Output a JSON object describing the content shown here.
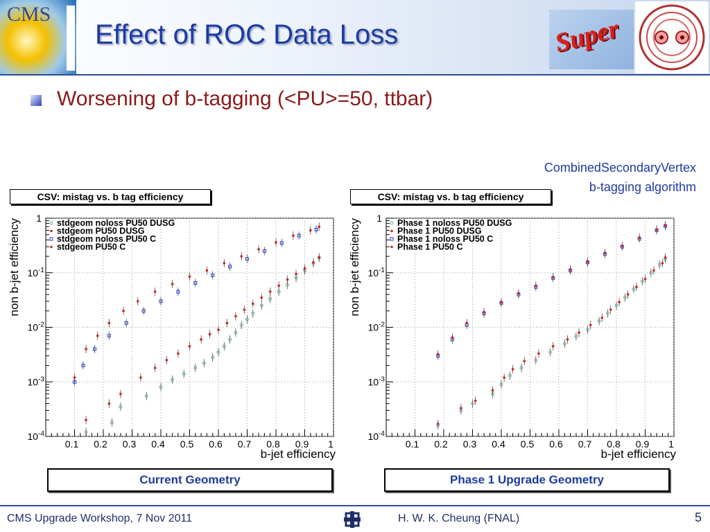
{
  "header": {
    "title": "Effect of ROC Data Loss",
    "cms_logo_text": "CMS",
    "super_logo_text": "Super"
  },
  "bullet": {
    "text": "Worsening of b-tagging (<PU>=50, ttbar)"
  },
  "algorithm": {
    "line1": "CombinedSecondaryVertex",
    "line2": "b-tagging algorithm"
  },
  "panels": [
    {
      "box_title": "CSV: mistag vs. b tag efficiency",
      "caption": "Current Geometry"
    },
    {
      "box_title": "CSV: mistag vs. b tag efficiency",
      "caption": "Phase 1 Upgrade Geometry"
    }
  ],
  "footer": {
    "left": "CMS Upgrade Workshop, 7 Nov 2011",
    "center": "H. W. K. Cheung (FNAL)",
    "page": "5"
  },
  "colors": {
    "title": "#1d3ba0",
    "bullet_text": "#8b1a1a",
    "series_red": "#d42020",
    "series_blue": "#2a3ad0",
    "series_green": "#6aa890"
  },
  "chart_data": [
    {
      "type": "scatter",
      "xlabel": "b-jet efficiency",
      "ylabel": "non b-jet efficiency",
      "xlim": [
        0,
        1
      ],
      "ylim": [
        0.0001,
        1
      ],
      "yscale": "log",
      "x_ticks": [
        "0.1",
        "0.2",
        "0.3",
        "0.4",
        "0.5",
        "0.6",
        "0.7",
        "0.8",
        "0.9",
        "1"
      ],
      "y_ticks": [
        {
          "base": "10",
          "exp": "-4",
          "v": 0.0001
        },
        {
          "base": "10",
          "exp": "-3",
          "v": 0.001
        },
        {
          "base": "10",
          "exp": "-2",
          "v": 0.01
        },
        {
          "base": "10",
          "exp": "-1",
          "v": 0.1
        },
        {
          "base": "1",
          "exp": "",
          "v": 1
        }
      ],
      "legend_position": "top-left",
      "series": [
        {
          "name": "stdgeom noloss PU50 DUSG",
          "marker": "circle",
          "color": "#6aa890",
          "points": [
            [
              0.14,
              0.00012
            ],
            [
              0.23,
              0.00018
            ],
            [
              0.26,
              0.00035
            ],
            [
              0.35,
              0.00055
            ],
            [
              0.4,
              0.0008
            ],
            [
              0.44,
              0.0011
            ],
            [
              0.48,
              0.0014
            ],
            [
              0.52,
              0.0018
            ],
            [
              0.55,
              0.0022
            ],
            [
              0.58,
              0.0028
            ],
            [
              0.6,
              0.0035
            ],
            [
              0.62,
              0.0045
            ],
            [
              0.64,
              0.006
            ],
            [
              0.66,
              0.008
            ],
            [
              0.68,
              0.011
            ],
            [
              0.7,
              0.014
            ],
            [
              0.72,
              0.018
            ],
            [
              0.75,
              0.025
            ],
            [
              0.78,
              0.033
            ],
            [
              0.81,
              0.045
            ],
            [
              0.84,
              0.06
            ],
            [
              0.87,
              0.08
            ],
            [
              0.9,
              0.11
            ],
            [
              0.93,
              0.15
            ],
            [
              0.95,
              0.19
            ]
          ]
        },
        {
          "name": "stdgeom PU50 DUSG",
          "marker": "dot",
          "color": "#d42020",
          "points": [
            [
              0.14,
              0.0002
            ],
            [
              0.22,
              0.0004
            ],
            [
              0.26,
              0.0006
            ],
            [
              0.33,
              0.0012
            ],
            [
              0.38,
              0.0018
            ],
            [
              0.42,
              0.0025
            ],
            [
              0.46,
              0.0033
            ],
            [
              0.5,
              0.0045
            ],
            [
              0.54,
              0.006
            ],
            [
              0.57,
              0.0075
            ],
            [
              0.6,
              0.009
            ],
            [
              0.63,
              0.012
            ],
            [
              0.66,
              0.016
            ],
            [
              0.69,
              0.021
            ],
            [
              0.72,
              0.027
            ],
            [
              0.75,
              0.035
            ],
            [
              0.78,
              0.045
            ],
            [
              0.81,
              0.058
            ],
            [
              0.84,
              0.075
            ],
            [
              0.87,
              0.095
            ],
            [
              0.9,
              0.12
            ],
            [
              0.93,
              0.155
            ],
            [
              0.95,
              0.19
            ]
          ]
        },
        {
          "name": "stdgeom noloss PU50 C",
          "marker": "square",
          "color": "#2a3ad0",
          "points": [
            [
              0.1,
              0.001
            ],
            [
              0.13,
              0.002
            ],
            [
              0.17,
              0.004
            ],
            [
              0.22,
              0.007
            ],
            [
              0.28,
              0.012
            ],
            [
              0.34,
              0.02
            ],
            [
              0.4,
              0.03
            ],
            [
              0.46,
              0.045
            ],
            [
              0.52,
              0.065
            ],
            [
              0.58,
              0.09
            ],
            [
              0.64,
              0.13
            ],
            [
              0.7,
              0.18
            ],
            [
              0.76,
              0.25
            ],
            [
              0.82,
              0.35
            ],
            [
              0.88,
              0.48
            ],
            [
              0.94,
              0.62
            ]
          ]
        },
        {
          "name": "stdgeom PU50 C",
          "marker": "dot",
          "color": "#d42020",
          "points": [
            [
              0.1,
              0.0012
            ],
            [
              0.14,
              0.004
            ],
            [
              0.18,
              0.007
            ],
            [
              0.22,
              0.012
            ],
            [
              0.27,
              0.02
            ],
            [
              0.32,
              0.03
            ],
            [
              0.38,
              0.045
            ],
            [
              0.44,
              0.062
            ],
            [
              0.5,
              0.085
            ],
            [
              0.56,
              0.11
            ],
            [
              0.62,
              0.15
            ],
            [
              0.68,
              0.2
            ],
            [
              0.74,
              0.27
            ],
            [
              0.8,
              0.36
            ],
            [
              0.86,
              0.48
            ],
            [
              0.92,
              0.6
            ],
            [
              0.95,
              0.7
            ]
          ]
        }
      ]
    },
    {
      "type": "scatter",
      "xlabel": "b-jet efficiency",
      "ylabel": "non b-jet efficiency",
      "xlim": [
        0,
        1
      ],
      "ylim": [
        0.0001,
        1
      ],
      "yscale": "log",
      "x_ticks": [
        "0.1",
        "0.2",
        "0.3",
        "0.4",
        "0.5",
        "0.6",
        "0.7",
        "0.8",
        "0.9",
        "1"
      ],
      "y_ticks": [
        {
          "base": "10",
          "exp": "-4",
          "v": 0.0001
        },
        {
          "base": "10",
          "exp": "-3",
          "v": 0.001
        },
        {
          "base": "10",
          "exp": "-2",
          "v": 0.01
        },
        {
          "base": "10",
          "exp": "-1",
          "v": 0.1
        },
        {
          "base": "1",
          "exp": "",
          "v": 1
        }
      ],
      "legend_position": "top-left",
      "series": [
        {
          "name": "Phase 1 noloss PU50 DUSG",
          "marker": "circle",
          "color": "#6aa890",
          "points": [
            [
              0.18,
              0.00016
            ],
            [
              0.26,
              0.0003
            ],
            [
              0.3,
              0.0004
            ],
            [
              0.37,
              0.0006
            ],
            [
              0.4,
              0.0009
            ],
            [
              0.43,
              0.0013
            ],
            [
              0.47,
              0.0018
            ],
            [
              0.52,
              0.0025
            ],
            [
              0.57,
              0.0035
            ],
            [
              0.62,
              0.005
            ],
            [
              0.66,
              0.0068
            ],
            [
              0.7,
              0.009
            ],
            [
              0.74,
              0.013
            ],
            [
              0.77,
              0.018
            ],
            [
              0.8,
              0.025
            ],
            [
              0.83,
              0.035
            ],
            [
              0.86,
              0.05
            ],
            [
              0.89,
              0.07
            ],
            [
              0.92,
              0.1
            ],
            [
              0.95,
              0.14
            ],
            [
              0.97,
              0.18
            ]
          ]
        },
        {
          "name": "Phase 1 PU50 DUSG",
          "marker": "dot",
          "color": "#d42020",
          "points": [
            [
              0.18,
              0.00017
            ],
            [
              0.26,
              0.00033
            ],
            [
              0.31,
              0.00045
            ],
            [
              0.37,
              0.0007
            ],
            [
              0.41,
              0.0012
            ],
            [
              0.44,
              0.0017
            ],
            [
              0.48,
              0.0024
            ],
            [
              0.53,
              0.0033
            ],
            [
              0.58,
              0.0045
            ],
            [
              0.63,
              0.006
            ],
            [
              0.67,
              0.008
            ],
            [
              0.71,
              0.011
            ],
            [
              0.75,
              0.015
            ],
            [
              0.78,
              0.021
            ],
            [
              0.81,
              0.029
            ],
            [
              0.84,
              0.04
            ],
            [
              0.87,
              0.055
            ],
            [
              0.9,
              0.077
            ],
            [
              0.93,
              0.11
            ],
            [
              0.96,
              0.15
            ],
            [
              0.97,
              0.19
            ]
          ]
        },
        {
          "name": "Phase 1 noloss PU50 C",
          "marker": "square",
          "color": "#2a3ad0",
          "points": [
            [
              0.18,
              0.003
            ],
            [
              0.23,
              0.006
            ],
            [
              0.28,
              0.011
            ],
            [
              0.34,
              0.018
            ],
            [
              0.4,
              0.028
            ],
            [
              0.46,
              0.04
            ],
            [
              0.52,
              0.055
            ],
            [
              0.58,
              0.08
            ],
            [
              0.64,
              0.11
            ],
            [
              0.7,
              0.155
            ],
            [
              0.76,
              0.22
            ],
            [
              0.82,
              0.3
            ],
            [
              0.88,
              0.42
            ],
            [
              0.94,
              0.6
            ],
            [
              0.97,
              0.72
            ]
          ]
        },
        {
          "name": "Phase 1 PU50 C",
          "marker": "dot",
          "color": "#d42020",
          "points": [
            [
              0.18,
              0.0032
            ],
            [
              0.23,
              0.0065
            ],
            [
              0.28,
              0.012
            ],
            [
              0.34,
              0.019
            ],
            [
              0.4,
              0.029
            ],
            [
              0.46,
              0.042
            ],
            [
              0.52,
              0.058
            ],
            [
              0.58,
              0.083
            ],
            [
              0.64,
              0.115
            ],
            [
              0.7,
              0.16
            ],
            [
              0.76,
              0.23
            ],
            [
              0.82,
              0.31
            ],
            [
              0.88,
              0.44
            ],
            [
              0.94,
              0.62
            ],
            [
              0.97,
              0.74
            ]
          ]
        }
      ]
    }
  ]
}
